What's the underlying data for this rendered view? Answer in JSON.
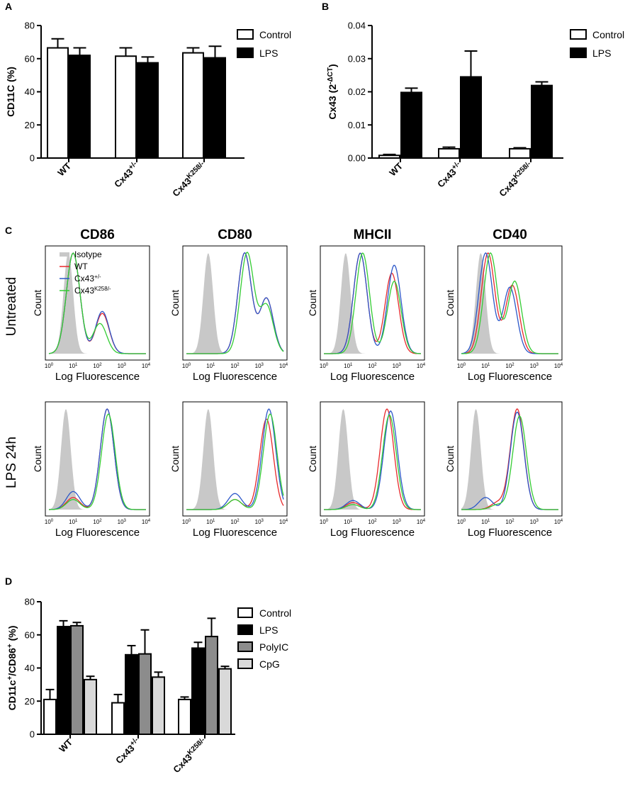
{
  "panels": {
    "A": "A",
    "B": "B",
    "C": "C",
    "D": "D"
  },
  "colors": {
    "control": "#ffffff",
    "lps": "#000000",
    "polyic": "#8c8c8c",
    "cpg": "#d9d9d9",
    "isotype": "#c8c8c8",
    "wt": "#e8292b",
    "het": "#2c57c9",
    "k258": "#33cc33"
  },
  "chart_data": [
    {
      "id": "A",
      "type": "bar",
      "ylabel_main": "CD11C",
      "ylabel_unit": " (%)",
      "ylim": [
        0,
        80
      ],
      "yticks": [
        "0",
        "20",
        "40",
        "60",
        "80"
      ],
      "categories": [
        {
          "base": "WT",
          "sup": ""
        },
        {
          "base": "Cx43",
          "sup": "+/-"
        },
        {
          "base": "Cx43",
          "sup": "K258/-"
        }
      ],
      "series": [
        {
          "name": "Control",
          "values": [
            66.5,
            61.5,
            63.5
          ],
          "errors": [
            5.5,
            5.0,
            3.0
          ]
        },
        {
          "name": "LPS",
          "values": [
            62,
            57.5,
            60.5
          ],
          "errors": [
            4.5,
            3.5,
            7.0
          ]
        }
      ]
    },
    {
      "id": "B",
      "type": "bar",
      "ylabel_main": "Cx43 (2",
      "ylabel_sup": "-ΔCT",
      "ylabel_end": ")",
      "ylim": [
        0,
        0.04
      ],
      "yticks": [
        "0.00",
        "0.01",
        "0.02",
        "0.03",
        "0.04"
      ],
      "categories": [
        {
          "base": "WT",
          "sup": ""
        },
        {
          "base": "Cx43",
          "sup": "+/-"
        },
        {
          "base": "Cx43",
          "sup": "K258/-"
        }
      ],
      "series": [
        {
          "name": "Control",
          "values": [
            0.0008,
            0.0028,
            0.0028
          ],
          "errors": [
            0.0003,
            0.0005,
            0.0003
          ]
        },
        {
          "name": "LPS",
          "values": [
            0.0198,
            0.0245,
            0.0219
          ],
          "errors": [
            0.0013,
            0.0078,
            0.0011
          ]
        }
      ]
    },
    {
      "id": "C",
      "type": "line",
      "description": "Flow cytometry histograms",
      "markers": [
        "CD86",
        "CD80",
        "MHCII",
        "CD40"
      ],
      "conditions": [
        "Untreated",
        "LPS 24h"
      ],
      "xlabel": "Log Fluorescence",
      "ylabel": "Count",
      "xticks": [
        {
          "base": "10",
          "sup": "0"
        },
        {
          "base": "10",
          "sup": "1"
        },
        {
          "base": "10",
          "sup": "2"
        },
        {
          "base": "10",
          "sup": "3"
        },
        {
          "base": "10",
          "sup": "4"
        }
      ],
      "legend": [
        {
          "name": "Isotype",
          "sup": ""
        },
        {
          "name": "WT",
          "sup": ""
        },
        {
          "name": "Cx43",
          "sup": "+/-"
        },
        {
          "name": "Cx43",
          "sup": "K258/-"
        }
      ],
      "histograms": [
        [
          {
            "iso": [
              [
                0.8,
                1
              ]
            ],
            "wt": [
              [
                1.0,
                1
              ],
              [
                2.2,
                0.4
              ]
            ],
            "het": [
              [
                1.0,
                1
              ],
              [
                2.2,
                0.42
              ]
            ],
            "k258": [
              [
                1.0,
                1
              ],
              [
                2.1,
                0.3
              ]
            ]
          },
          {
            "iso": [
              [
                0.9,
                1
              ]
            ],
            "wt": [
              [
                2.4,
                1
              ],
              [
                3.3,
                0.55
              ]
            ],
            "het": [
              [
                2.4,
                1
              ],
              [
                3.3,
                0.55
              ]
            ],
            "k258": [
              [
                2.5,
                1
              ],
              [
                3.3,
                0.48
              ]
            ]
          },
          {
            "iso": [
              [
                0.9,
                1
              ]
            ],
            "wt": [
              [
                1.5,
                1
              ],
              [
                2.8,
                0.8
              ]
            ],
            "het": [
              [
                1.5,
                1
              ],
              [
                2.9,
                0.88
              ]
            ],
            "k258": [
              [
                1.6,
                1
              ],
              [
                2.9,
                0.72
              ]
            ]
          },
          {
            "iso": [
              [
                0.8,
                1
              ]
            ],
            "wt": [
              [
                1.1,
                1
              ],
              [
                2.1,
                0.68
              ]
            ],
            "het": [
              [
                1.0,
                1
              ],
              [
                2.0,
                0.66
              ]
            ],
            "k258": [
              [
                1.2,
                1
              ],
              [
                2.2,
                0.72
              ]
            ]
          }
        ],
        [
          {
            "iso": [
              [
                0.7,
                1
              ]
            ],
            "wt": [
              [
                1.0,
                0.12
              ],
              [
                2.4,
                1
              ]
            ],
            "het": [
              [
                1.0,
                0.18
              ],
              [
                2.4,
                1
              ]
            ],
            "k258": [
              [
                1.0,
                0.1
              ],
              [
                2.45,
                0.95
              ]
            ]
          },
          {
            "iso": [
              [
                0.9,
                1
              ]
            ],
            "wt": [
              [
                2.0,
                0.1
              ],
              [
                3.3,
                0.9
              ]
            ],
            "het": [
              [
                2.0,
                0.16
              ],
              [
                3.4,
                1
              ]
            ],
            "k258": [
              [
                2.0,
                0.1
              ],
              [
                3.45,
                0.95
              ]
            ]
          },
          {
            "iso": [
              [
                0.8,
                1
              ]
            ],
            "wt": [
              [
                1.2,
                0.07
              ],
              [
                2.6,
                1
              ]
            ],
            "het": [
              [
                1.2,
                0.09
              ],
              [
                2.75,
                0.98
              ]
            ],
            "k258": [
              [
                1.2,
                0.05
              ],
              [
                2.7,
                0.94
              ]
            ]
          },
          {
            "iso": [
              [
                0.6,
                1
              ]
            ],
            "wt": [
              [
                1.5,
                0.07
              ],
              [
                2.3,
                1
              ]
            ],
            "het": [
              [
                1.0,
                0.12
              ],
              [
                2.3,
                0.97
              ]
            ],
            "k258": [
              [
                1.5,
                0.05
              ],
              [
                2.4,
                0.93
              ]
            ]
          }
        ]
      ]
    },
    {
      "id": "D",
      "type": "bar",
      "ylabel_parts": [
        "CD11c",
        "+",
        "/CD86",
        "+",
        " (%)"
      ],
      "ylim": [
        0,
        80
      ],
      "yticks": [
        "0",
        "20",
        "40",
        "60",
        "80"
      ],
      "categories": [
        {
          "base": "WT",
          "sup": ""
        },
        {
          "base": "Cx43",
          "sup": "+/-"
        },
        {
          "base": "Cx43",
          "sup": "K258/-"
        }
      ],
      "series": [
        {
          "name": "Control",
          "values": [
            21,
            19,
            21
          ],
          "errors": [
            6,
            5,
            1.5
          ]
        },
        {
          "name": "LPS",
          "values": [
            65,
            48,
            52
          ],
          "errors": [
            3.5,
            5.5,
            3.5
          ]
        },
        {
          "name": "PolyIC",
          "values": [
            65.5,
            48.5,
            59
          ],
          "errors": [
            2,
            14.5,
            11
          ]
        },
        {
          "name": "CpG",
          "values": [
            33,
            34.5,
            39.5
          ],
          "errors": [
            2,
            3,
            1.5
          ]
        }
      ]
    }
  ]
}
